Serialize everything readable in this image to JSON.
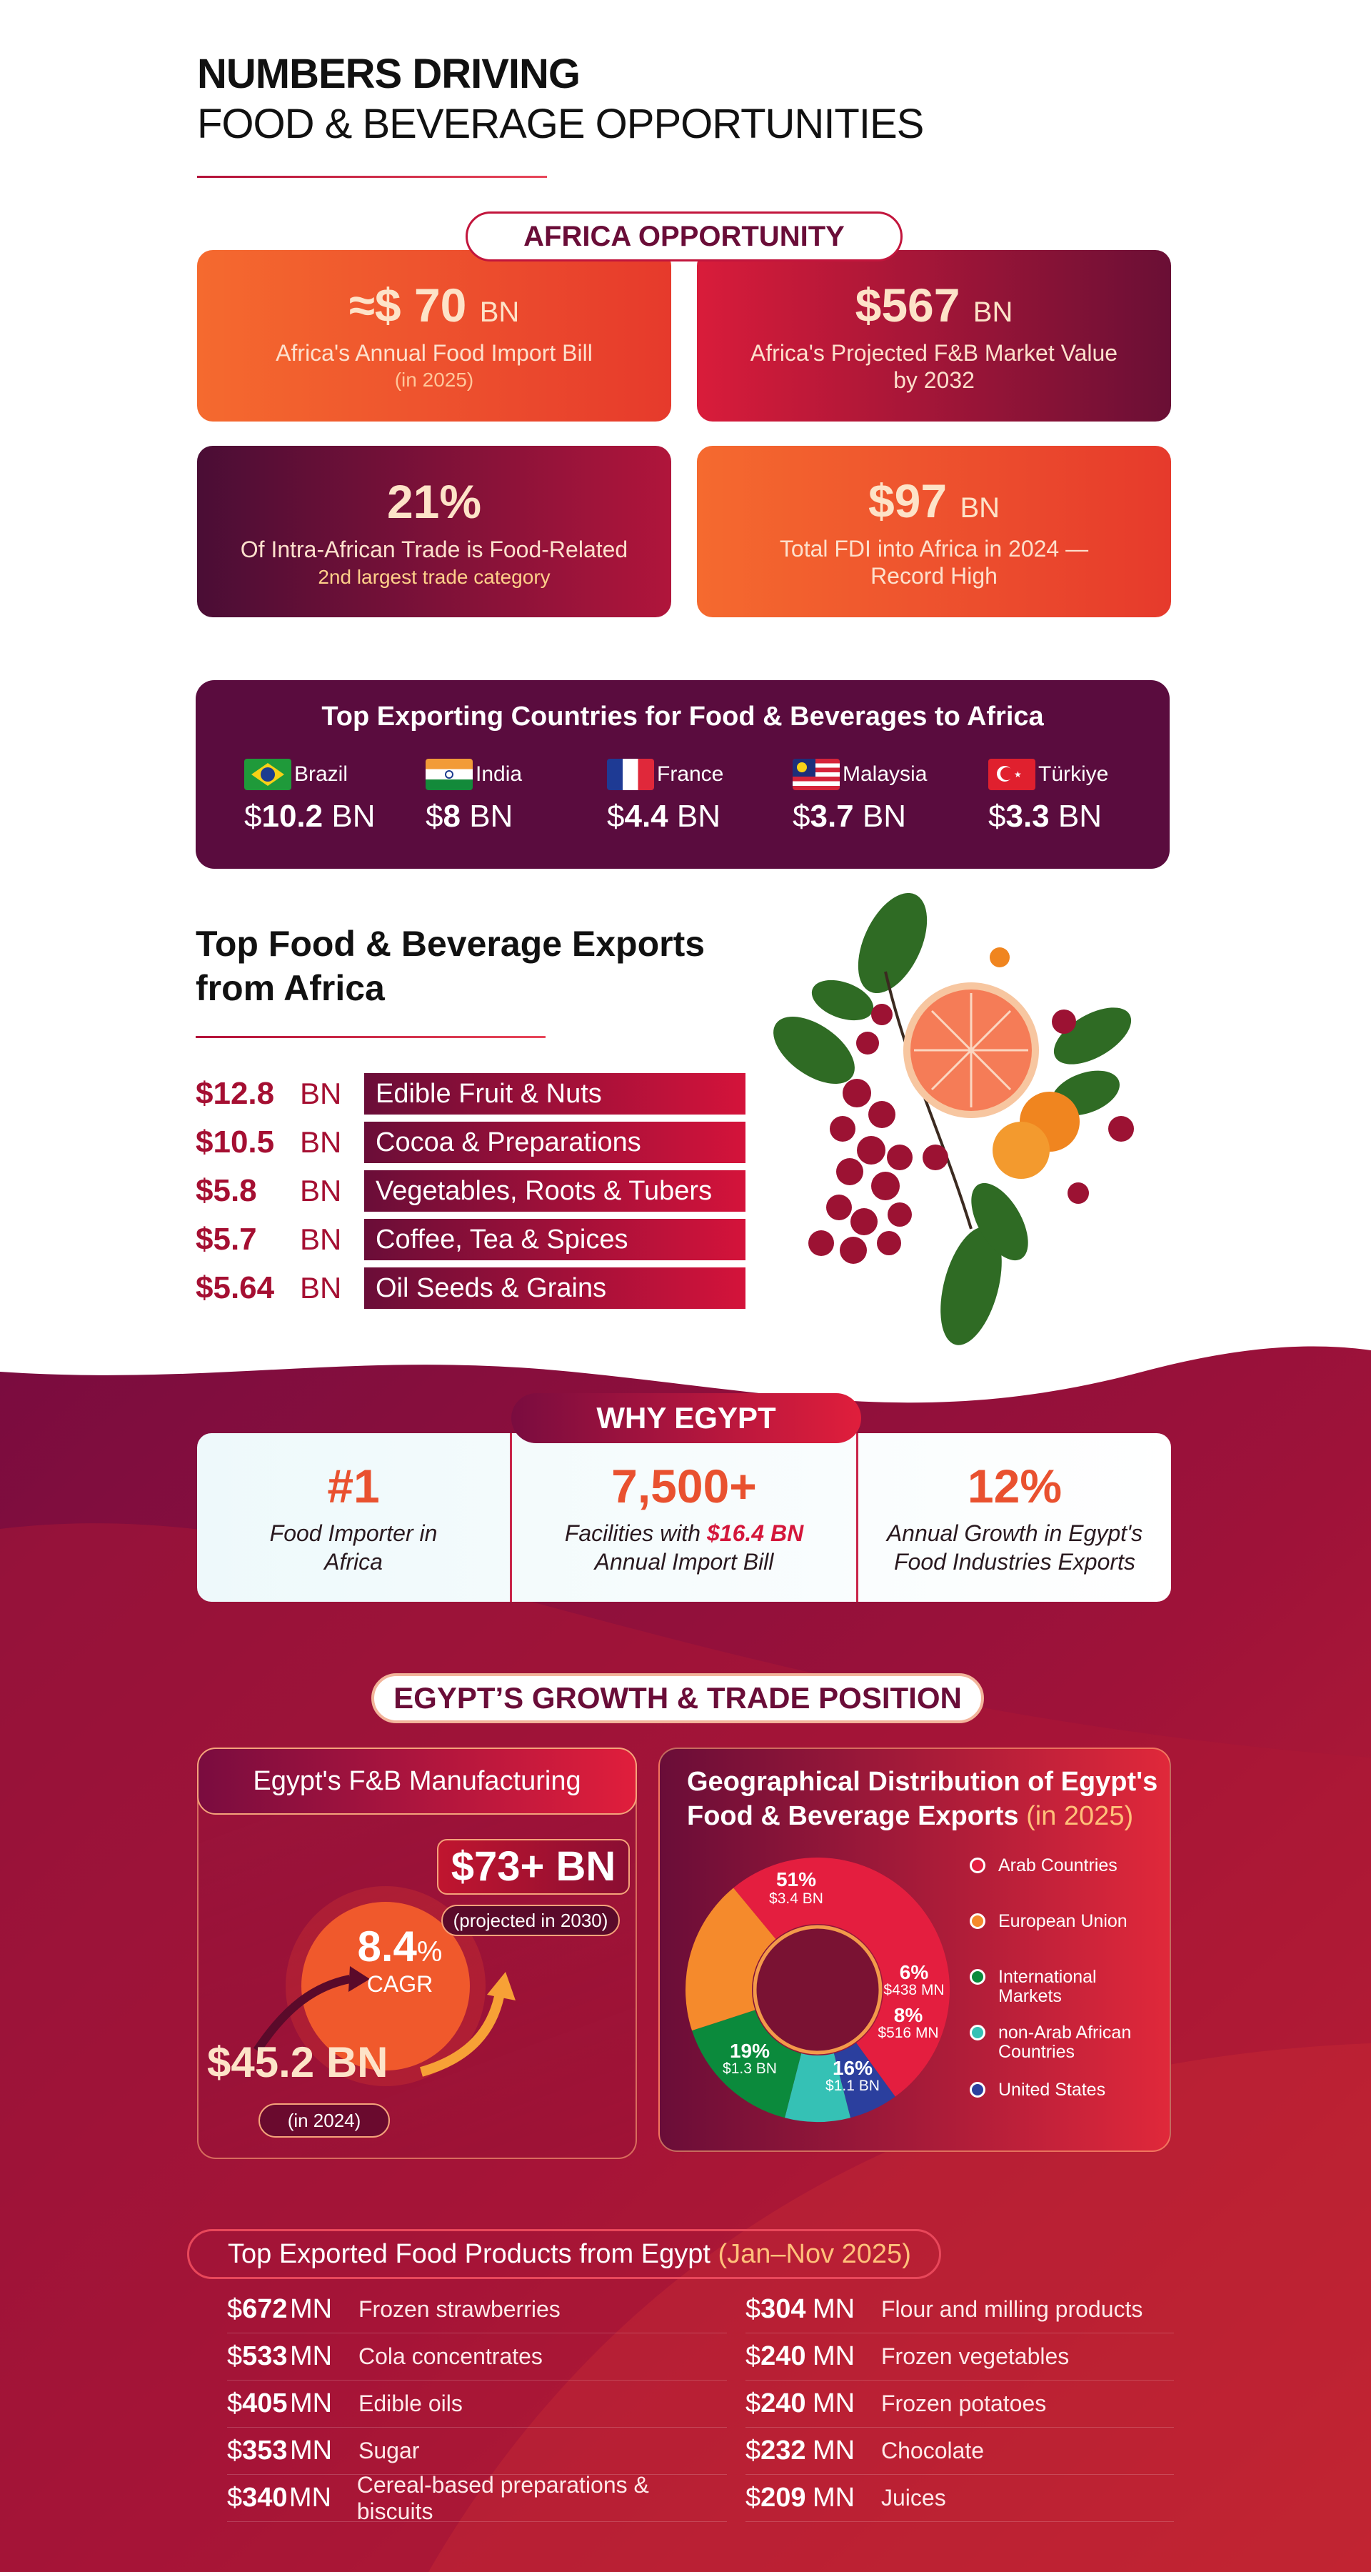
{
  "header": {
    "title": "NUMBERS DRIVING",
    "subtitle": "FOOD & BEVERAGE OPPORTUNITIES"
  },
  "africa": {
    "label": "AFRICA OPPORTUNITY",
    "cards": [
      {
        "value": "≈$ 70",
        "unit": "BN",
        "text": "Africa's Annual Food Import Bill",
        "sub": "(in 2025)"
      },
      {
        "value": "$567",
        "unit": "BN",
        "text": "Africa's Projected F&B Market Value by 2032",
        "sub": ""
      },
      {
        "value": "21%",
        "unit": "",
        "text": "Of Intra-African Trade is Food-Related",
        "sub": "2nd largest trade category"
      },
      {
        "value": "$97",
        "unit": "BN",
        "text": "Total FDI into Africa in 2024 — Record High",
        "sub": ""
      }
    ]
  },
  "exporters": {
    "title": "Top Exporting Countries for Food & Beverages to Africa",
    "items": [
      {
        "country": "Brazil",
        "amount": "10.2",
        "unit": "BN"
      },
      {
        "country": "India",
        "amount": "8",
        "unit": "BN"
      },
      {
        "country": "France",
        "amount": "4.4",
        "unit": "BN"
      },
      {
        "country": "Malaysia",
        "amount": "3.7",
        "unit": "BN"
      },
      {
        "country": "Türkiye",
        "amount": "3.3",
        "unit": "BN"
      }
    ]
  },
  "top_exports": {
    "title_line1": "Top Food & Beverage Exports",
    "title_line2": "from Africa",
    "items": [
      {
        "amount": "$12.8",
        "unit": "BN",
        "label": "Edible Fruit & Nuts"
      },
      {
        "amount": "$10.5",
        "unit": "BN",
        "label": "Cocoa & Preparations"
      },
      {
        "amount": "$5.8",
        "unit": "BN",
        "label": "Vegetables, Roots & Tubers"
      },
      {
        "amount": "$5.7",
        "unit": "BN",
        "label": "Coffee, Tea & Spices"
      },
      {
        "amount": "$5.64",
        "unit": "BN",
        "label": "Oil Seeds & Grains"
      }
    ]
  },
  "why_egypt": {
    "label": "WHY EGYPT",
    "items": [
      {
        "value": "#1",
        "text": "Food Importer in Africa"
      },
      {
        "value": "7,500+",
        "text_pre": "Facilities with ",
        "text_hi": "$16.4 BN",
        "text_post": "Annual Import Bill"
      },
      {
        "value": "12%",
        "text": "Annual Growth in Egypt's Food Industries Exports"
      }
    ]
  },
  "growth": {
    "label": "EGYPT’S GROWTH & TRADE POSITION",
    "manufacturing": {
      "title": "Egypt's F&B Manufacturing",
      "projected": "$73+ BN",
      "projected_note": "(projected in 2030)",
      "cagr": "8.4",
      "cagr_pct": "%",
      "cagr_label": "CAGR",
      "current": "$45.2 BN",
      "current_note": "(in 2024)"
    },
    "distribution": {
      "title_line1": "Geographical Distribution of Egypt's",
      "title_line2": "Food & Beverage Exports",
      "title_year": "(in 2025)",
      "segments": [
        {
          "pct": "51%",
          "value": "$3.4 BN",
          "name": "Arab Countries",
          "color": "#e41e3f"
        },
        {
          "pct": "19%",
          "value": "$1.3 BN",
          "name": "European Union",
          "color": "#f58a2c"
        },
        {
          "pct": "16%",
          "value": "$1.1 BN",
          "name": "International Markets",
          "color": "#0b8a3c"
        },
        {
          "pct": "8%",
          "value": "$516 MN",
          "name": "non-Arab African Countries",
          "color": "#35c1b5"
        },
        {
          "pct": "6%",
          "value": "$438 MN",
          "name": "United States",
          "color": "#2b3f9e"
        }
      ]
    }
  },
  "egypt_products": {
    "title": "Top Exported Food Products from Egypt",
    "period": "(Jan–Nov 2025)",
    "left": [
      {
        "amount": "672",
        "unit": "MN",
        "label": "Frozen strawberries"
      },
      {
        "amount": "533",
        "unit": "MN",
        "label": "Cola concentrates"
      },
      {
        "amount": "405",
        "unit": "MN",
        "label": "Edible oils"
      },
      {
        "amount": "353",
        "unit": "MN",
        "label": "Sugar"
      },
      {
        "amount": "340",
        "unit": "MN",
        "label": "Cereal-based preparations & biscuits"
      }
    ],
    "right": [
      {
        "amount": "304",
        "unit": "MN",
        "label": "Flour and milling products"
      },
      {
        "amount": "240",
        "unit": "MN",
        "label": "Frozen vegetables"
      },
      {
        "amount": "240",
        "unit": "MN",
        "label": "Frozen potatoes"
      },
      {
        "amount": "232",
        "unit": "MN",
        "label": "Chocolate"
      },
      {
        "amount": "209",
        "unit": "MN",
        "label": "Juices"
      }
    ]
  },
  "colors": {
    "accent": "#b3123a",
    "orange": "#f26a2f",
    "dark": "#5a0c3e"
  }
}
